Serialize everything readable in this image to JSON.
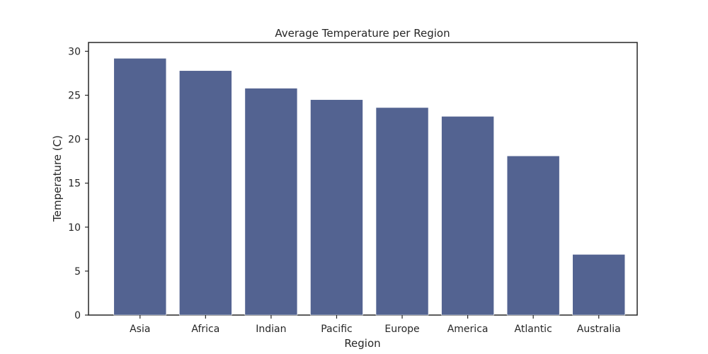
{
  "chart_data": {
    "type": "bar",
    "title": "Average Temperature per Region",
    "xlabel": "Region",
    "ylabel": "Temperature (C)",
    "categories": [
      "Asia",
      "Africa",
      "Indian",
      "Pacific",
      "Europe",
      "America",
      "Atlantic",
      "Australia"
    ],
    "values": [
      29.2,
      27.8,
      25.8,
      24.5,
      23.6,
      22.6,
      18.1,
      6.9
    ],
    "ylim": [
      0,
      31
    ],
    "yticks": [
      0,
      5,
      10,
      15,
      20,
      25,
      30
    ],
    "grid": false,
    "bar_color": "#536391"
  }
}
